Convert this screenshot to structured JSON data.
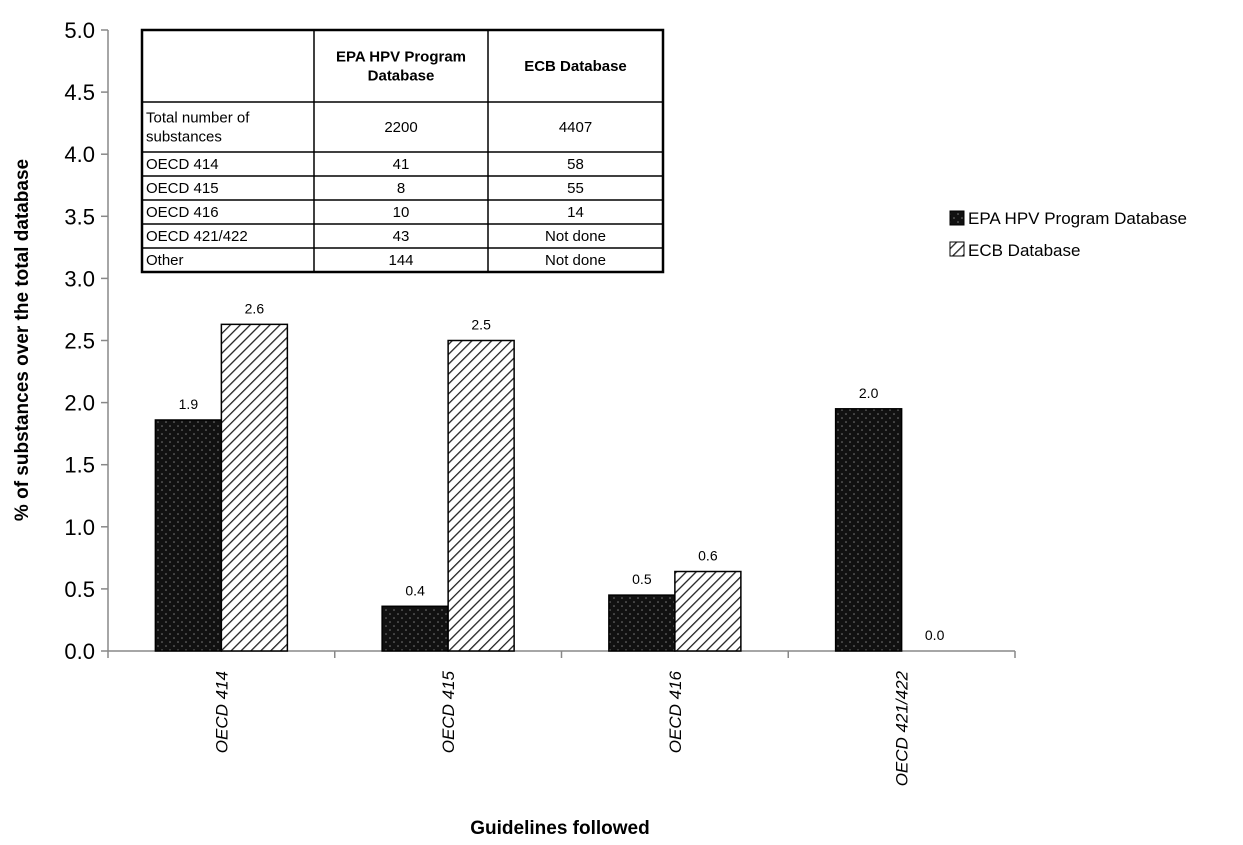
{
  "chart_data": {
    "type": "bar",
    "xlabel": "Guidelines followed",
    "ylabel": "% of substances over the total database",
    "ylim": [
      0,
      5
    ],
    "yticks": [
      "0.0",
      "0.5",
      "1.0",
      "1.5",
      "2.0",
      "2.5",
      "3.0",
      "3.5",
      "4.0",
      "4.5",
      "5.0"
    ],
    "categories": [
      "OECD 414",
      "OECD 415",
      "OECD 416",
      "OECD 421/422"
    ],
    "series": [
      {
        "name": "EPA HPV Program Database",
        "values": [
          1.86,
          0.36,
          0.45,
          1.95
        ],
        "labels": [
          "1.9",
          "0.4",
          "0.5",
          "2.0"
        ],
        "color": "#111111",
        "pattern": "dotted-black"
      },
      {
        "name": "ECB Database",
        "values": [
          2.63,
          2.5,
          0.64,
          0.0
        ],
        "labels": [
          "2.6",
          "2.5",
          "0.6",
          "0.0"
        ],
        "color": "#ffffff",
        "pattern": "diagonal-hatch"
      }
    ],
    "legend_position": "right",
    "grid": false,
    "inset_table": {
      "headers": [
        "",
        "EPA HPV Program\nDatabase",
        "ECB Database"
      ],
      "rows": [
        [
          "Total number of\nsubstances",
          "2200",
          "4407"
        ],
        [
          "OECD 414",
          "41",
          "58"
        ],
        [
          "OECD 415",
          "8",
          "55"
        ],
        [
          "OECD 416",
          "10",
          "14"
        ],
        [
          "OECD 421/422",
          "43",
          "Not done"
        ],
        [
          "Other",
          "144",
          "Not done"
        ]
      ]
    }
  }
}
